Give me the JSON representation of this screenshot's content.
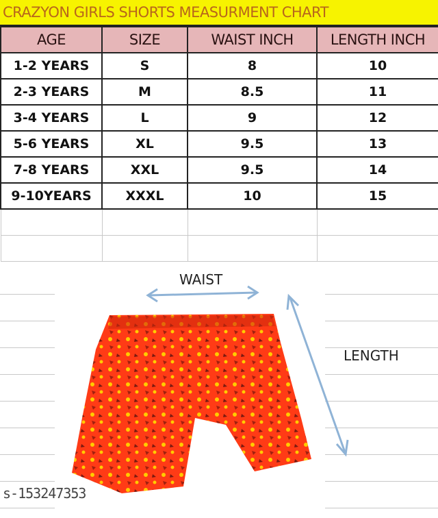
{
  "title": "CRAZYON GIRLS SHORTS MEASURMENT CHART",
  "table": {
    "headers": [
      "AGE",
      "SIZE",
      "WAIST INCH",
      "LENGTH INCH"
    ],
    "rows": [
      [
        "1-2 YEARS",
        "S",
        "8",
        "10"
      ],
      [
        "2-3 YEARS",
        "M",
        "8.5",
        "11"
      ],
      [
        "3-4 YEARS",
        "L",
        "9",
        "12"
      ],
      [
        "5-6 YEARS",
        "XL",
        "9.5",
        "13"
      ],
      [
        "7-8 YEARS",
        "XXL",
        "9.5",
        "14"
      ],
      [
        "9-10YEARS",
        "XXXL",
        "10",
        "15"
      ]
    ]
  },
  "diagram": {
    "waist_label": "WAIST",
    "length_label": "LENGTH",
    "arrow_color": "#8fb3d6",
    "shorts_color": "#ff3b16",
    "dot_color": "#ffcc00"
  },
  "watermark": "s-153247353",
  "colors": {
    "title_bg": "#f7f300",
    "title_text": "#b8661b",
    "header_bg": "#e6b6b8"
  }
}
